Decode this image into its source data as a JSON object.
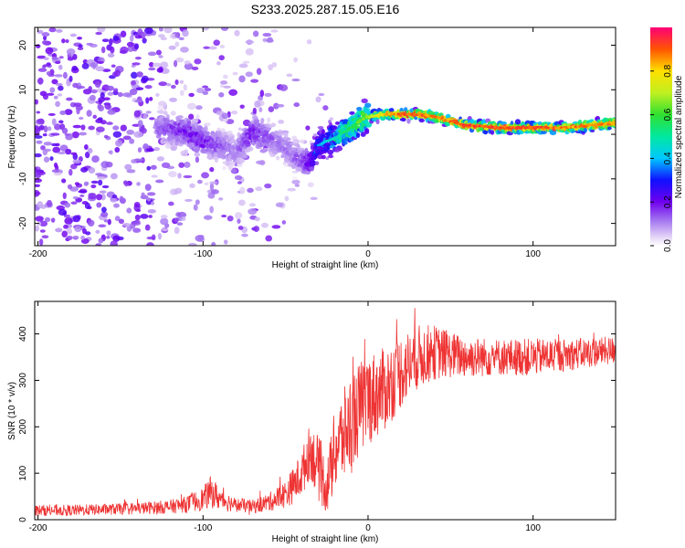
{
  "title": "S233.2025.287.15.05.E16",
  "chart_data": [
    {
      "type": "heatmap",
      "name": "spectrogram",
      "xlabel": "Height of straight line (km)",
      "ylabel": "Frequency (Hz)",
      "xlim": [
        -202,
        150
      ],
      "ylim": [
        -25,
        24
      ],
      "xticks": [
        -200,
        -100,
        0,
        100
      ],
      "xtick_labels": [
        "-200",
        "-100",
        "0",
        "100"
      ],
      "yticks": [
        -20,
        -10,
        0,
        10,
        20
      ],
      "ytick_labels": [
        "-20",
        "-10",
        "0",
        "10",
        "20"
      ],
      "colorbar": {
        "label": "Normalized spectral amplitude",
        "range": [
          0,
          1
        ],
        "ticks": [
          0.0,
          0.2,
          0.4,
          0.6,
          0.8
        ],
        "tick_labels": [
          "0.0",
          "0.2",
          "0.4",
          "0.6",
          "0.8"
        ]
      },
      "ridge_track": {
        "x": [
          -125,
          -110,
          -100,
          -90,
          -80,
          -70,
          -60,
          -50,
          -40,
          -35,
          -30,
          -25,
          -20,
          -15,
          -10,
          -5,
          0,
          10,
          20,
          30,
          40,
          50,
          60,
          80,
          100,
          120,
          150
        ],
        "freq": [
          1.5,
          0.5,
          -1.5,
          -2.5,
          -4,
          0.5,
          -0.5,
          -3,
          -6,
          -6.5,
          -2.5,
          -1.5,
          -1,
          0.5,
          1.5,
          3,
          4,
          4.5,
          4.5,
          4.5,
          4,
          3,
          2,
          1.5,
          1.5,
          1.5,
          2.5
        ],
        "peak_amplitude": [
          0.15,
          0.2,
          0.2,
          0.15,
          0.12,
          0.2,
          0.15,
          0.12,
          0.15,
          0.25,
          0.4,
          0.45,
          0.5,
          0.55,
          0.6,
          0.65,
          0.7,
          0.85,
          0.95,
          0.95,
          0.9,
          0.9,
          0.95,
          0.95,
          0.95,
          0.9,
          0.9
        ]
      }
    },
    {
      "type": "line",
      "name": "snr",
      "xlabel": "Height of straight line (km)",
      "ylabel": "SNR (10 * v/v)",
      "xlim": [
        -202,
        150
      ],
      "ylim": [
        0,
        470
      ],
      "xticks": [
        -200,
        -100,
        0,
        100
      ],
      "xtick_labels": [
        "-200",
        "-100",
        "0",
        "100"
      ],
      "yticks": [
        0,
        100,
        200,
        300,
        400
      ],
      "ytick_labels": [
        "0",
        "100",
        "200",
        "300",
        "400"
      ],
      "color": "#ee3333",
      "envelope": {
        "x": [
          -202,
          -180,
          -160,
          -140,
          -120,
          -110,
          -100,
          -95,
          -90,
          -80,
          -70,
          -60,
          -50,
          -45,
          -40,
          -35,
          -30,
          -25,
          -20,
          -15,
          -10,
          -5,
          0,
          10,
          20,
          30,
          40,
          50,
          60,
          80,
          100,
          120,
          150
        ],
        "mean": [
          20,
          20,
          22,
          24,
          28,
          33,
          45,
          60,
          45,
          32,
          28,
          38,
          55,
          75,
          100,
          150,
          110,
          70,
          150,
          180,
          210,
          240,
          260,
          280,
          320,
          350,
          360,
          355,
          350,
          350,
          350,
          355,
          365
        ],
        "spread": [
          12,
          12,
          12,
          13,
          15,
          18,
          25,
          35,
          25,
          15,
          15,
          20,
          30,
          40,
          50,
          60,
          70,
          60,
          90,
          100,
          110,
          100,
          100,
          90,
          80,
          70,
          60,
          50,
          45,
          40,
          40,
          35,
          30
        ]
      }
    }
  ]
}
